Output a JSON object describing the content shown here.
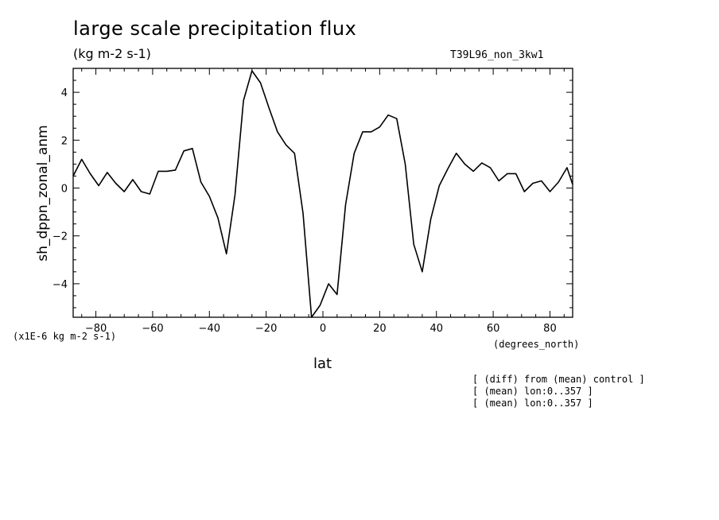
{
  "header": {
    "title": "large scale precipitation flux",
    "units": "(kg m-2 s-1)",
    "run_label": "T39L96_non_3kw1"
  },
  "annotations": {
    "scale_note": "(x1E-6 kg m-2 s-1)",
    "x_units": "(degrees_north)",
    "notes": [
      "[ (diff) from (mean) control ]",
      "[ (mean) lon:0..357 ]",
      "[ (mean) lon:0..357 ]"
    ]
  },
  "chart_data": {
    "type": "line",
    "title": "large scale precipitation flux",
    "xlabel": "lat",
    "ylabel": "sh_dppn_zonal_anm",
    "xlim": [
      -88,
      88
    ],
    "ylim": [
      -5.4,
      5.0
    ],
    "xticks": [
      -80,
      -60,
      -40,
      -20,
      0,
      20,
      40,
      60,
      80
    ],
    "yticks": [
      -4,
      -2,
      0,
      2,
      4
    ],
    "grid": false,
    "series": [
      {
        "color": "#000000",
        "x": [
          -88,
          -85,
          -82,
          -79,
          -76,
          -73,
          -70,
          -67,
          -64,
          -61,
          -58,
          -55,
          -52,
          -49,
          -46,
          -43,
          -40,
          -37,
          -34,
          -31,
          -28,
          -25,
          -22,
          -19,
          -16,
          -13,
          -10,
          -7,
          -4,
          -1,
          2,
          5,
          8,
          11,
          14,
          17,
          20,
          23,
          26,
          29,
          32,
          35,
          38,
          41,
          44,
          47,
          50,
          53,
          56,
          59,
          62,
          65,
          68,
          71,
          74,
          77,
          80,
          83,
          86,
          88
        ],
        "y": [
          0.5,
          1.2,
          0.6,
          0.1,
          0.65,
          0.2,
          -0.15,
          0.35,
          -0.15,
          -0.25,
          0.7,
          0.7,
          0.75,
          1.55,
          1.65,
          0.25,
          -0.35,
          -1.25,
          -2.75,
          -0.3,
          3.65,
          4.9,
          4.4,
          3.35,
          2.35,
          1.8,
          1.45,
          -1.05,
          -5.4,
          -4.9,
          -4.0,
          -4.45,
          -0.7,
          1.45,
          2.35,
          2.35,
          2.55,
          3.05,
          2.9,
          1.0,
          -2.35,
          -3.5,
          -1.3,
          0.1,
          0.8,
          1.45,
          1.0,
          0.7,
          1.05,
          0.85,
          0.3,
          0.6,
          0.6,
          -0.15,
          0.2,
          0.3,
          -0.15,
          0.25,
          0.85,
          0.15
        ]
      }
    ]
  }
}
